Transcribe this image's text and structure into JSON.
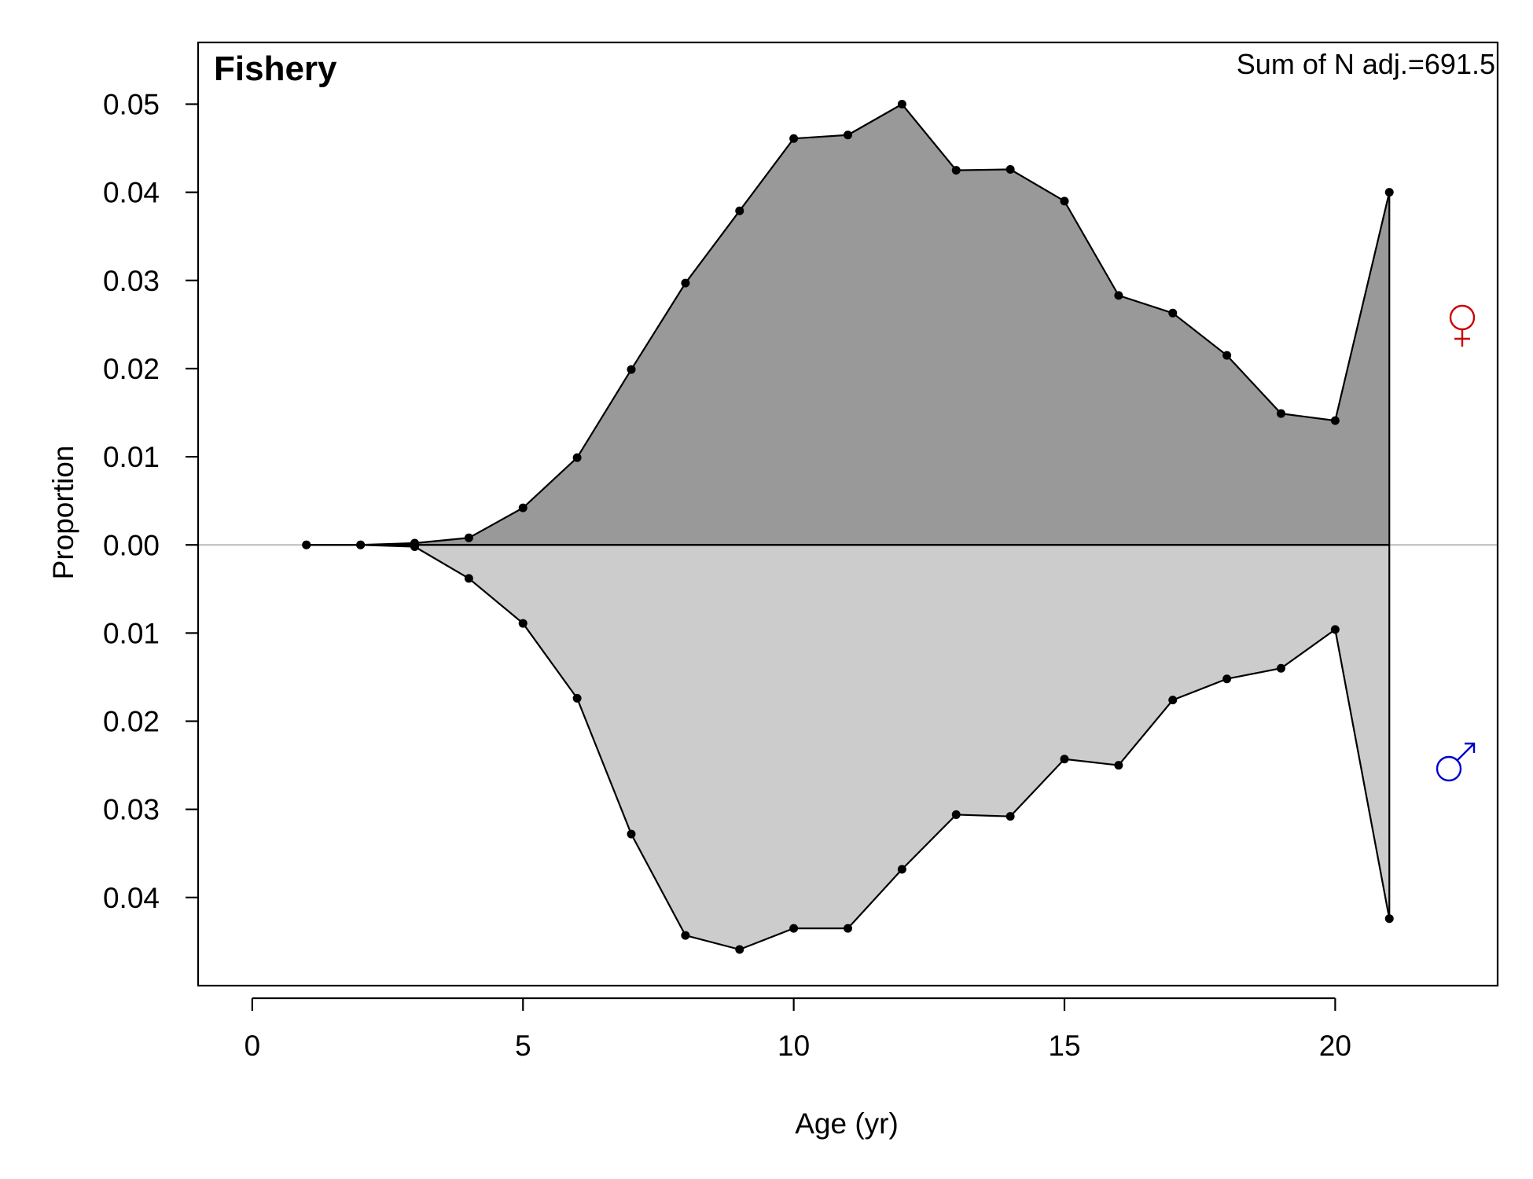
{
  "chart_data": {
    "type": "area",
    "title": "Fishery",
    "annotation": "Sum of N adj.=691.5",
    "xlabel": "Age (yr)",
    "ylabel": "Proportion",
    "xlim": [
      -1,
      23
    ],
    "ylim": [
      -0.05,
      0.057
    ],
    "x_ticks": [
      0,
      5,
      10,
      15,
      20
    ],
    "x_tick_labels": [
      "0",
      "5",
      "10",
      "15",
      "20"
    ],
    "y_ticks_female": [
      0,
      0.01,
      0.02,
      0.03,
      0.04,
      0.05
    ],
    "y_ticks_male": [
      0.01,
      0.02,
      0.03,
      0.04
    ],
    "y_tick_labels_female": [
      "0.00",
      "0.01",
      "0.02",
      "0.03",
      "0.04",
      "0.05"
    ],
    "y_tick_labels_male": [
      "0.01",
      "0.02",
      "0.03",
      "0.04"
    ],
    "grid": false,
    "series": [
      {
        "name": "♀",
        "side": "positive",
        "color": "#cc0000",
        "fill": "#999999",
        "x": [
          1,
          2,
          3,
          4,
          5,
          6,
          7,
          8,
          9,
          10,
          11,
          12,
          13,
          14,
          15,
          16,
          17,
          18,
          19,
          20,
          21
        ],
        "values": [
          0.0,
          0.0,
          0.0002,
          0.0008,
          0.0042,
          0.0099,
          0.0199,
          0.0297,
          0.0379,
          0.0461,
          0.0465,
          0.05,
          0.0425,
          0.0426,
          0.039,
          0.0283,
          0.0263,
          0.0215,
          0.0149,
          0.0141,
          0.04
        ]
      },
      {
        "name": "♂",
        "side": "negative",
        "color": "#0000cc",
        "fill": "#cccccc",
        "x": [
          1,
          2,
          3,
          4,
          5,
          6,
          7,
          8,
          9,
          10,
          11,
          12,
          13,
          14,
          15,
          16,
          17,
          18,
          19,
          20,
          21
        ],
        "values": [
          0.0,
          0.0,
          0.0002,
          0.0038,
          0.0089,
          0.0174,
          0.0328,
          0.0443,
          0.0459,
          0.0435,
          0.0435,
          0.0368,
          0.0306,
          0.0308,
          0.0243,
          0.025,
          0.0176,
          0.0152,
          0.014,
          0.0096,
          0.0424
        ]
      }
    ],
    "colors": {
      "zero_line": "#bbbbbb",
      "line": "#000000"
    }
  }
}
